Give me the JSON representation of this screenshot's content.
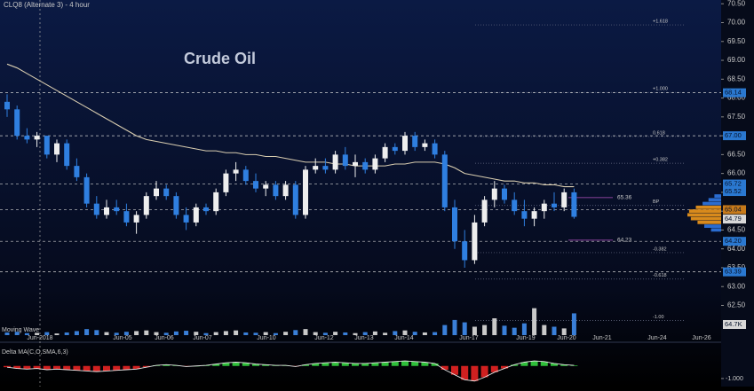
{
  "chart_data": {
    "type": "candlestick",
    "title": "CLQ8 (Alternate 3) - 4 hour",
    "annotation": "Crude Oil",
    "x_labels": [
      "Jun-2018",
      "Jun-05",
      "Jun-06",
      "Jun-07",
      "Jun-10",
      "Jun-12",
      "Jun-13",
      "Jun-14",
      "Jun-17",
      "Jun-19",
      "Jun-20",
      "Jun-21",
      "Jun-24",
      "Jun-26"
    ],
    "ohlc": [
      [
        67.9,
        68.1,
        67.5,
        67.7
      ],
      [
        67.7,
        67.8,
        66.9,
        67.0
      ],
      [
        67.0,
        67.2,
        66.8,
        66.9
      ],
      [
        66.9,
        67.1,
        66.7,
        67.0
      ],
      [
        67.0,
        67.0,
        66.4,
        66.5
      ],
      [
        66.5,
        66.9,
        66.3,
        66.8
      ],
      [
        66.8,
        66.9,
        66.1,
        66.2
      ],
      [
        66.2,
        66.4,
        65.8,
        65.9
      ],
      [
        65.9,
        66.0,
        65.1,
        65.2
      ],
      [
        65.2,
        65.4,
        64.8,
        64.9
      ],
      [
        64.9,
        65.3,
        64.8,
        65.1
      ],
      [
        65.1,
        65.3,
        64.9,
        65.0
      ],
      [
        65.0,
        65.2,
        64.6,
        64.7
      ],
      [
        64.7,
        65.0,
        64.4,
        64.9
      ],
      [
        64.9,
        65.5,
        64.8,
        65.4
      ],
      [
        65.4,
        65.8,
        65.3,
        65.6
      ],
      [
        65.6,
        65.7,
        65.3,
        65.4
      ],
      [
        65.4,
        65.5,
        64.8,
        64.9
      ],
      [
        64.9,
        65.1,
        64.5,
        64.7
      ],
      [
        64.7,
        65.2,
        64.6,
        65.1
      ],
      [
        65.1,
        65.2,
        64.9,
        65.0
      ],
      [
        65.0,
        65.6,
        64.9,
        65.5
      ],
      [
        65.5,
        66.1,
        65.4,
        66.0
      ],
      [
        66.0,
        66.3,
        65.8,
        66.1
      ],
      [
        66.1,
        66.2,
        65.7,
        65.8
      ],
      [
        65.8,
        66.0,
        65.5,
        65.6
      ],
      [
        65.6,
        65.8,
        65.4,
        65.7
      ],
      [
        65.7,
        65.8,
        65.3,
        65.4
      ],
      [
        65.4,
        65.8,
        65.3,
        65.7
      ],
      [
        65.7,
        65.8,
        64.8,
        64.9
      ],
      [
        64.9,
        66.2,
        64.8,
        66.1
      ],
      [
        66.1,
        66.4,
        66.0,
        66.2
      ],
      [
        66.2,
        66.4,
        66.0,
        66.1
      ],
      [
        66.1,
        66.6,
        66.0,
        66.5
      ],
      [
        66.5,
        66.7,
        66.1,
        66.2
      ],
      [
        66.2,
        66.5,
        65.9,
        66.3
      ],
      [
        66.3,
        66.4,
        66.0,
        66.1
      ],
      [
        66.1,
        66.5,
        66.0,
        66.4
      ],
      [
        66.4,
        66.8,
        66.3,
        66.7
      ],
      [
        66.7,
        66.8,
        66.5,
        66.6
      ],
      [
        66.6,
        67.1,
        66.5,
        67.0
      ],
      [
        67.0,
        67.1,
        66.6,
        66.7
      ],
      [
        66.7,
        66.9,
        66.6,
        66.8
      ],
      [
        66.8,
        66.9,
        66.4,
        66.5
      ],
      [
        66.5,
        66.6,
        65.0,
        65.1
      ],
      [
        65.1,
        65.3,
        64.0,
        64.2
      ],
      [
        64.2,
        64.5,
        63.5,
        63.7
      ],
      [
        63.7,
        64.9,
        63.6,
        64.7
      ],
      [
        64.7,
        65.4,
        64.6,
        65.3
      ],
      [
        65.3,
        65.8,
        65.1,
        65.6
      ],
      [
        65.6,
        65.7,
        65.2,
        65.3
      ],
      [
        65.3,
        65.5,
        64.9,
        65.0
      ],
      [
        65.0,
        65.3,
        64.6,
        64.8
      ],
      [
        64.8,
        65.1,
        64.6,
        65.0
      ],
      [
        65.0,
        65.3,
        64.8,
        65.2
      ],
      [
        65.2,
        65.5,
        65.0,
        65.1
      ],
      [
        65.1,
        65.6,
        65.0,
        65.5
      ],
      [
        65.5,
        65.6,
        64.8,
        64.85
      ]
    ],
    "up_color": "#eeeeee",
    "down_color": "#2f7fe0",
    "ylim": [
      61.9,
      70.6
    ],
    "yticks": [
      {
        "value": 62.5,
        "label": "62.50"
      },
      {
        "value": 63,
        "label": "63.00"
      },
      {
        "value": 63.5,
        "label": "63.50"
      },
      {
        "value": 64,
        "label": "64.00"
      },
      {
        "value": 64.5,
        "label": "64.50"
      },
      {
        "value": 65,
        "label": "65.00"
      },
      {
        "value": 65.5,
        "label": "65.50"
      },
      {
        "value": 66,
        "label": "66.00"
      },
      {
        "value": 66.5,
        "label": "66.50"
      },
      {
        "value": 67,
        "label": "67.00"
      },
      {
        "value": 67.5,
        "label": "67.50"
      },
      {
        "value": 68,
        "label": "68.00"
      },
      {
        "value": 68.5,
        "label": "68.50"
      },
      {
        "value": 69,
        "label": "69.00"
      },
      {
        "value": 69.5,
        "label": "69.50"
      },
      {
        "value": 70,
        "label": "70.00"
      },
      {
        "value": 70.5,
        "label": "70.50"
      }
    ],
    "ma": {
      "color": "#d9cdb0",
      "values": [
        68.9,
        68.8,
        68.65,
        68.5,
        68.35,
        68.2,
        68.05,
        67.9,
        67.75,
        67.6,
        67.45,
        67.3,
        67.15,
        67.0,
        66.9,
        66.85,
        66.8,
        66.75,
        66.7,
        66.65,
        66.6,
        66.6,
        66.55,
        66.55,
        66.5,
        66.5,
        66.45,
        66.45,
        66.4,
        66.35,
        66.3,
        66.3,
        66.3,
        66.25,
        66.25,
        66.2,
        66.2,
        66.2,
        66.2,
        66.25,
        66.25,
        66.3,
        66.3,
        66.3,
        66.25,
        66.15,
        66.0,
        65.95,
        65.9,
        65.85,
        65.8,
        65.8,
        65.75,
        65.75,
        65.7,
        65.7,
        65.65,
        65.65
      ]
    },
    "levels": [
      {
        "value": 68.14,
        "label": "68.14",
        "color": "#2a78d0",
        "line": true
      },
      {
        "value": 67.0,
        "label": "67.00",
        "color": "#2a78d0",
        "line": true
      },
      {
        "value": 65.72,
        "label": "65.72",
        "color": "#2a78d0",
        "line": true
      },
      {
        "value": 65.52,
        "label": "65.52",
        "color": "#2a78d0",
        "line": false
      },
      {
        "value": 65.04,
        "label": "65.04",
        "color": "#c77a1a",
        "line": true
      },
      {
        "value": 64.79,
        "label": "64.79",
        "color": "#d8d8d8",
        "line": false
      },
      {
        "value": 64.2,
        "label": "64.20",
        "color": "#2a78d0",
        "line": true
      },
      {
        "value": 63.39,
        "label": "63.39",
        "color": "#2a78d0",
        "line": true
      }
    ],
    "fib_levels": [
      {
        "value": 69.94,
        "label": "+1.618"
      },
      {
        "value": 68.15,
        "label": "+1.000"
      },
      {
        "value": 66.98,
        "label": "0.618"
      },
      {
        "value": 66.27,
        "label": "+0.382"
      },
      {
        "value": 65.15,
        "label": "BP"
      },
      {
        "value": 63.9,
        "label": "-0.382"
      },
      {
        "value": 63.2,
        "label": "-0.618"
      },
      {
        "value": 62.1,
        "label": "-1.00"
      }
    ],
    "annotations": [
      {
        "value": 65.36,
        "label": "65.36"
      },
      {
        "value": 64.23,
        "label": "64.23"
      }
    ],
    "volume_profile": {
      "prices": [
        65.4,
        65.3,
        65.2,
        65.1,
        65.0,
        64.9,
        64.8,
        64.7,
        64.6,
        64.5
      ],
      "values": [
        8,
        15,
        22,
        30,
        38,
        40,
        36,
        28,
        20,
        12
      ]
    },
    "volume": {
      "title": "Moving Wave",
      "color": "#8fa3bf",
      "ylim": [
        0,
        100
      ],
      "values": [
        8,
        10,
        6,
        7,
        9,
        5,
        8,
        12,
        18,
        15,
        9,
        7,
        10,
        12,
        14,
        9,
        7,
        11,
        13,
        10,
        6,
        9,
        12,
        14,
        8,
        7,
        9,
        6,
        10,
        15,
        18,
        9,
        7,
        10,
        8,
        6,
        9,
        11,
        7,
        12,
        14,
        10,
        8,
        9,
        30,
        45,
        38,
        25,
        30,
        50,
        28,
        22,
        35,
        80,
        30,
        25,
        20,
        64.7
      ],
      "last": {
        "value": 64.7,
        "label": "64.7K"
      }
    },
    "indicator": {
      "title": "Delta MA(C,O,SMA,6,3)",
      "ylim": [
        -1.5,
        0.9
      ],
      "yticks": [
        {
          "value": -1,
          "label": "-1.000"
        }
      ],
      "pos_color": "#2fbf3a",
      "neg_color": "#d02020",
      "values": [
        -0.1,
        -0.2,
        -0.25,
        -0.2,
        -0.3,
        -0.25,
        -0.3,
        -0.35,
        -0.4,
        -0.45,
        -0.4,
        -0.35,
        -0.3,
        -0.25,
        -0.1,
        0.05,
        0.1,
        0.05,
        -0.05,
        0.0,
        0.05,
        0.15,
        0.25,
        0.3,
        0.25,
        0.15,
        0.1,
        0.05,
        0.05,
        -0.05,
        0.1,
        0.2,
        0.25,
        0.3,
        0.25,
        0.2,
        0.2,
        0.25,
        0.3,
        0.35,
        0.4,
        0.35,
        0.3,
        0.2,
        -0.3,
        -0.7,
        -1.1,
        -1.2,
        -0.9,
        -0.5,
        -0.2,
        0.1,
        0.3,
        0.4,
        0.35,
        0.2,
        0.1,
        0.05
      ]
    }
  }
}
